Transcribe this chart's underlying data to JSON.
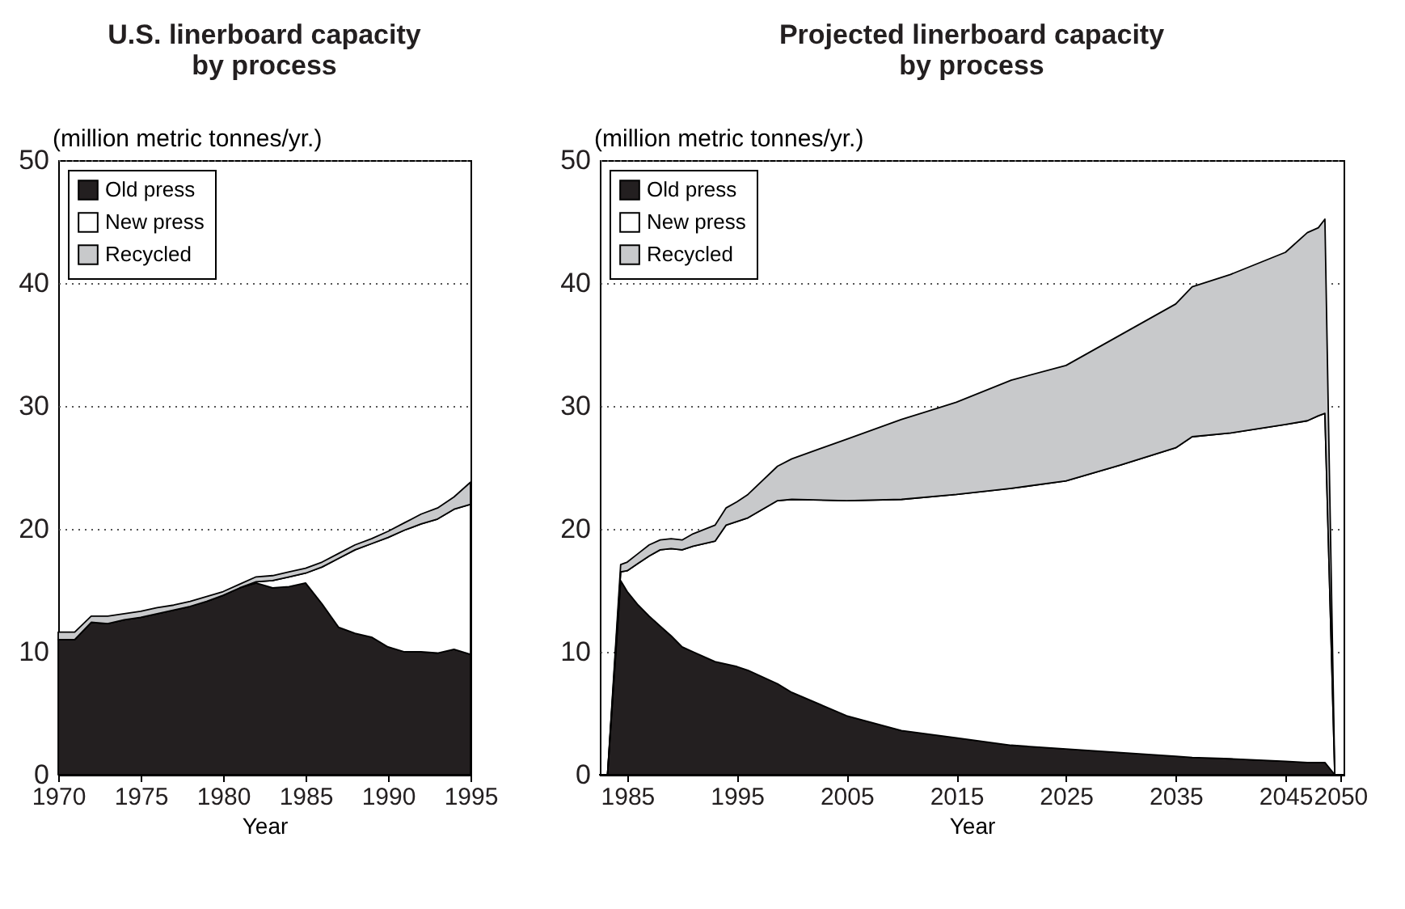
{
  "chart_data": [
    {
      "type": "area",
      "title": "U.S. linerboard capacity by process",
      "xlabel": "Year",
      "ylabel": "(million metric tonnes/yr.)",
      "stacked": true,
      "legend": "top left",
      "grid": "y",
      "marker": "none",
      "x": [
        1970,
        1971,
        1972,
        1973,
        1974,
        1975,
        1976,
        1977,
        1978,
        1979,
        1980,
        1981,
        1982,
        1983,
        1984,
        1985,
        1986,
        1987,
        1988,
        1989,
        1990,
        1991,
        1992,
        1993,
        1994,
        1995
      ],
      "xlim": [
        1970,
        1995
      ],
      "xticks": [
        1970,
        1975,
        1980,
        1985,
        1990,
        1995
      ],
      "ylim": [
        0,
        50
      ],
      "yticks": [
        0,
        10,
        20,
        30,
        40,
        50
      ],
      "series": [
        {
          "name": "Old press",
          "color": "#231f20",
          "values": [
            11.0,
            11.0,
            12.4,
            12.3,
            12.6,
            12.8,
            13.1,
            13.4,
            13.7,
            14.1,
            14.6,
            15.2,
            15.6,
            15.2,
            15.3,
            15.6,
            13.9,
            12.0,
            11.5,
            11.2,
            10.4,
            10.0,
            10.0,
            9.9,
            10.2,
            9.8
          ]
        },
        {
          "name": "New press",
          "color": "#ffffff",
          "values": [
            0,
            0,
            0,
            0,
            0,
            0,
            0,
            0,
            0,
            0,
            0,
            0,
            0.1,
            0.6,
            0.8,
            0.8,
            3.0,
            5.6,
            6.8,
            7.6,
            8.9,
            9.9,
            10.4,
            10.9,
            11.4,
            12.2
          ]
        },
        {
          "name": "Recycled",
          "color": "#c8c9cb",
          "values": [
            0.6,
            0.6,
            0.5,
            0.6,
            0.5,
            0.5,
            0.5,
            0.4,
            0.4,
            0.4,
            0.3,
            0.3,
            0.4,
            0.4,
            0.4,
            0.4,
            0.4,
            0.4,
            0.4,
            0.4,
            0.5,
            0.6,
            0.8,
            0.9,
            1.0,
            1.8
          ]
        }
      ]
    },
    {
      "type": "area",
      "title": "Projected linerboard capacity by process",
      "xlabel": "Year",
      "ylabel": "(million metric tonnes/yr.)",
      "stacked": true,
      "legend": "top left",
      "grid": "y",
      "marker": "none",
      "x": [
        1982.5,
        1983.2,
        1984.4,
        1985,
        1986,
        1987,
        1988,
        1989,
        1990,
        1991,
        1993,
        1994,
        1995,
        1996,
        1998.7,
        2000,
        2005,
        2010,
        2015,
        2020,
        2025,
        2030,
        2035,
        2036.5,
        2040,
        2045,
        2047,
        2048,
        2048.6,
        2049.5,
        2050.3
      ],
      "xlim": [
        1982.5,
        2050.3
      ],
      "xticks": [
        1985,
        1995,
        2005,
        2015,
        2025,
        2035,
        2045,
        2050
      ],
      "ylim": [
        0,
        50
      ],
      "yticks": [
        0,
        10,
        20,
        30,
        40,
        50
      ],
      "series": [
        {
          "name": "Old press",
          "color": "#231f20",
          "values": [
            0,
            0,
            15.8,
            14.9,
            13.8,
            12.9,
            12.1,
            11.3,
            10.4,
            10.0,
            9.2,
            9.0,
            8.8,
            8.5,
            7.4,
            6.7,
            4.8,
            3.6,
            3.0,
            2.4,
            2.1,
            1.8,
            1.5,
            1.4,
            1.3,
            1.1,
            1.0,
            1.0,
            1.0,
            0,
            0
          ]
        },
        {
          "name": "New press",
          "color": "#ffffff",
          "values": [
            0,
            0,
            0.7,
            1.7,
            3.4,
            4.9,
            6.2,
            7.1,
            7.9,
            8.6,
            9.8,
            11.3,
            11.8,
            12.4,
            14.9,
            15.7,
            17.5,
            18.8,
            19.8,
            20.9,
            21.8,
            23.4,
            25.1,
            26.1,
            26.5,
            27.4,
            27.8,
            28.2,
            28.4,
            0,
            0
          ]
        },
        {
          "name": "Recycled",
          "color": "#c8c9cb",
          "values": [
            0,
            0,
            0.6,
            0.7,
            0.8,
            0.9,
            0.8,
            0.8,
            0.8,
            1.0,
            1.3,
            1.4,
            1.6,
            1.9,
            2.8,
            3.3,
            5.0,
            6.5,
            7.5,
            8.8,
            9.4,
            10.6,
            11.7,
            12.2,
            12.9,
            14.0,
            15.3,
            15.3,
            15.8,
            0,
            0
          ]
        }
      ]
    }
  ]
}
